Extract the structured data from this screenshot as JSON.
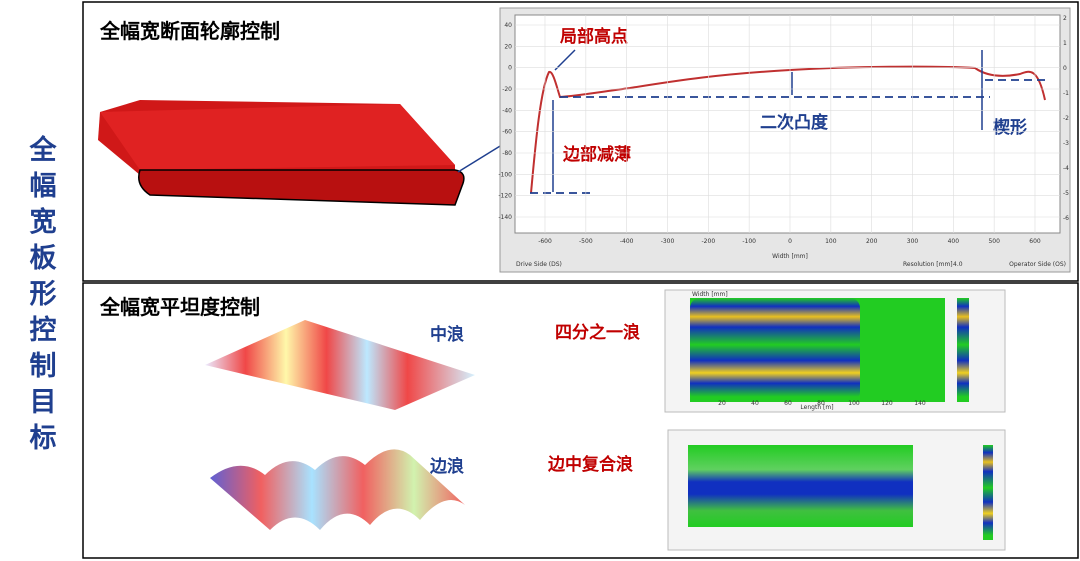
{
  "side_title": "全幅宽板形控制目标",
  "profile_section": {
    "title": "全幅宽断面轮廓控制",
    "annotations": {
      "local_high": "局部高点",
      "edge_drop": "边部减薄",
      "crown": "二次凸度",
      "wedge": "楔形"
    },
    "chart": {
      "yticks_left": [
        40,
        20,
        0,
        -20,
        -40,
        -60,
        -80,
        -100,
        -120,
        -140
      ],
      "yticks_right": [
        2,
        1,
        0,
        -1,
        -2,
        -3,
        -4,
        -5,
        -6
      ],
      "xticks": [
        -600,
        -500,
        -400,
        -300,
        -200,
        -100,
        0,
        100,
        200,
        300,
        400,
        500,
        600
      ],
      "x_label": "Width [mm]",
      "left_footer": "Drive Side (DS)",
      "resolution_label": "Resolution [mm]",
      "resolution_value": "4.0",
      "right_footer": "Operator Side (OS)"
    }
  },
  "flatness_section": {
    "title": "全幅宽平坦度控制",
    "center_wave": "中浪",
    "edge_wave": "边浪",
    "quarter_wave": "四分之一浪",
    "composite_wave": "边中复合浪",
    "heatmap": {
      "y_label": "Width [mm]",
      "x_label": "Length [m]",
      "xticks": [
        20,
        40,
        60,
        80,
        100,
        120,
        140
      ]
    }
  }
}
